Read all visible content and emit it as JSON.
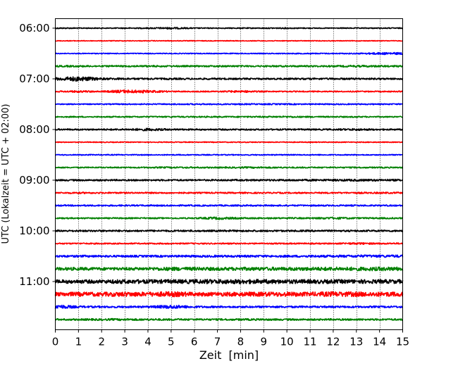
{
  "chart_data": {
    "type": "line",
    "title": "",
    "xlabel": "Zeit  [min]",
    "ylabel": "UTC (Lokalzeit = UTC + 02:00)",
    "xlim": [
      0,
      15
    ],
    "x_ticks": [
      0,
      1,
      2,
      3,
      4,
      5,
      6,
      7,
      8,
      9,
      10,
      11,
      12,
      13,
      14,
      15
    ],
    "y_tick_labels": [
      "06:00",
      "07:00",
      "08:00",
      "09:00",
      "10:00",
      "11:00"
    ],
    "grid": "vertical dotted lines at each minute",
    "trace_interval_minutes": 15,
    "trace_start": "06:00",
    "trace_count": 24,
    "trace_colors": [
      "#000000",
      "#ff0000",
      "#0000ff",
      "#008000"
    ],
    "series": [
      {
        "start": "06:00",
        "color": "#000000",
        "amplitude": [
          0.9,
          0.7,
          0.6,
          0.7,
          0.8,
          1.4,
          0.7,
          0.6,
          0.7,
          0.7,
          0.9,
          0.6,
          0.6,
          0.7,
          0.7
        ]
      },
      {
        "start": "06:15",
        "color": "#ff0000",
        "amplitude": [
          0.5,
          0.5,
          0.5,
          0.5,
          0.5,
          0.5,
          0.5,
          0.5,
          0.5,
          0.5,
          0.5,
          0.5,
          0.5,
          0.5,
          0.5
        ]
      },
      {
        "start": "06:30",
        "color": "#0000ff",
        "amplitude": [
          0.6,
          0.6,
          0.6,
          0.6,
          0.6,
          0.6,
          0.6,
          0.6,
          0.6,
          0.6,
          0.7,
          0.7,
          0.7,
          0.8,
          1.5
        ]
      },
      {
        "start": "06:45",
        "color": "#008000",
        "amplitude": [
          1.2,
          1.2,
          1.0,
          1.1,
          1.2,
          1.1,
          1.0,
          1.1,
          1.1,
          1.1,
          1.1,
          1.1,
          1.1,
          1.4,
          1.2
        ]
      },
      {
        "start": "07:00",
        "color": "#000000",
        "amplitude": [
          2.0,
          3.5,
          1.5,
          1.3,
          1.2,
          1.2,
          1.1,
          1.2,
          1.1,
          1.1,
          1.1,
          1.2,
          1.2,
          1.2,
          1.1
        ]
      },
      {
        "start": "07:15",
        "color": "#ff0000",
        "amplitude": [
          0.8,
          1.4,
          0.9,
          2.4,
          1.8,
          0.9,
          0.8,
          0.8,
          1.6,
          0.8,
          0.8,
          0.8,
          0.8,
          0.8,
          0.8
        ]
      },
      {
        "start": "07:30",
        "color": "#0000ff",
        "amplitude": [
          0.7,
          0.7,
          0.7,
          0.8,
          0.8,
          0.8,
          0.9,
          0.9,
          0.9,
          0.9,
          0.9,
          0.8,
          0.8,
          0.8,
          0.8
        ]
      },
      {
        "start": "07:45",
        "color": "#008000",
        "amplitude": [
          0.8,
          0.8,
          0.8,
          0.9,
          0.9,
          0.9,
          0.9,
          0.9,
          0.9,
          1.0,
          1.2,
          0.9,
          0.9,
          0.9,
          0.8
        ]
      },
      {
        "start": "08:00",
        "color": "#000000",
        "amplitude": [
          1.0,
          1.0,
          1.0,
          1.2,
          1.9,
          1.1,
          1.0,
          1.0,
          1.0,
          1.0,
          1.0,
          1.0,
          1.0,
          1.5,
          1.0
        ]
      },
      {
        "start": "08:15",
        "color": "#ff0000",
        "amplitude": [
          0.6,
          0.6,
          0.6,
          0.6,
          0.6,
          0.6,
          0.6,
          0.6,
          0.6,
          0.6,
          0.6,
          0.6,
          0.6,
          0.6,
          0.6
        ]
      },
      {
        "start": "08:30",
        "color": "#0000ff",
        "amplitude": [
          0.7,
          0.7,
          0.7,
          0.7,
          0.7,
          0.7,
          0.7,
          0.7,
          0.7,
          0.7,
          0.7,
          0.7,
          0.7,
          0.7,
          0.7
        ]
      },
      {
        "start": "08:45",
        "color": "#008000",
        "amplitude": [
          0.8,
          0.8,
          0.8,
          0.8,
          0.9,
          1.1,
          1.0,
          0.9,
          1.1,
          1.1,
          0.9,
          0.9,
          0.9,
          0.9,
          0.9
        ]
      },
      {
        "start": "09:00",
        "color": "#000000",
        "amplitude": [
          1.1,
          1.1,
          1.1,
          1.1,
          1.1,
          1.1,
          1.1,
          1.1,
          1.2,
          1.2,
          1.3,
          1.3,
          1.4,
          1.5,
          1.4
        ]
      },
      {
        "start": "09:15",
        "color": "#ff0000",
        "amplitude": [
          0.9,
          1.2,
          1.0,
          1.0,
          1.0,
          1.0,
          1.0,
          1.0,
          1.0,
          1.0,
          1.0,
          1.0,
          1.0,
          1.1,
          1.1
        ]
      },
      {
        "start": "09:30",
        "color": "#0000ff",
        "amplitude": [
          1.0,
          1.0,
          1.0,
          1.0,
          1.0,
          1.0,
          1.0,
          1.0,
          1.0,
          1.0,
          1.0,
          1.0,
          1.0,
          1.0,
          1.0
        ]
      },
      {
        "start": "09:45",
        "color": "#008000",
        "amplitude": [
          0.9,
          0.9,
          0.9,
          0.9,
          0.9,
          0.9,
          0.9,
          1.9,
          1.1,
          1.0,
          1.0,
          1.0,
          1.6,
          1.0,
          1.0
        ]
      },
      {
        "start": "10:00",
        "color": "#000000",
        "amplitude": [
          1.2,
          1.2,
          1.2,
          1.2,
          1.2,
          1.2,
          1.2,
          1.2,
          1.3,
          1.2,
          1.2,
          1.2,
          1.2,
          1.2,
          1.2
        ]
      },
      {
        "start": "10:15",
        "color": "#ff0000",
        "amplitude": [
          0.9,
          0.9,
          0.9,
          0.9,
          0.9,
          0.9,
          0.9,
          0.9,
          0.9,
          0.9,
          0.9,
          0.9,
          0.9,
          1.4,
          1.0
        ]
      },
      {
        "start": "10:30",
        "color": "#0000ff",
        "amplitude": [
          1.4,
          1.5,
          1.4,
          1.4,
          1.4,
          1.4,
          1.5,
          1.5,
          1.5,
          1.5,
          1.5,
          1.6,
          1.6,
          1.8,
          1.8
        ]
      },
      {
        "start": "10:45",
        "color": "#008000",
        "amplitude": [
          2.0,
          2.2,
          2.0,
          2.0,
          2.2,
          2.6,
          2.4,
          2.3,
          2.4,
          2.4,
          2.4,
          2.5,
          2.6,
          2.6,
          2.7
        ]
      },
      {
        "start": "11:00",
        "color": "#000000",
        "amplitude": [
          2.5,
          2.6,
          2.5,
          3.0,
          2.8,
          2.8,
          3.0,
          3.2,
          3.2,
          3.0,
          2.9,
          2.9,
          2.8,
          2.8,
          2.8
        ]
      },
      {
        "start": "11:15",
        "color": "#ff0000",
        "amplitude": [
          2.8,
          3.0,
          2.9,
          3.4,
          3.0,
          3.8,
          2.8,
          2.8,
          3.0,
          3.2,
          3.2,
          3.0,
          3.6,
          3.4,
          3.2
        ]
      },
      {
        "start": "11:30",
        "color": "#0000ff",
        "amplitude": [
          3.2,
          1.4,
          1.3,
          1.3,
          1.3,
          2.8,
          1.4,
          1.3,
          1.3,
          1.3,
          1.3,
          1.3,
          1.3,
          1.3,
          1.3
        ]
      },
      {
        "start": "11:45",
        "color": "#008000",
        "amplitude": [
          1.2,
          1.2,
          1.4,
          1.4,
          1.3,
          1.3,
          1.2,
          1.2,
          1.3,
          1.3,
          1.2,
          1.2,
          1.2,
          1.2,
          1.2
        ]
      }
    ]
  }
}
